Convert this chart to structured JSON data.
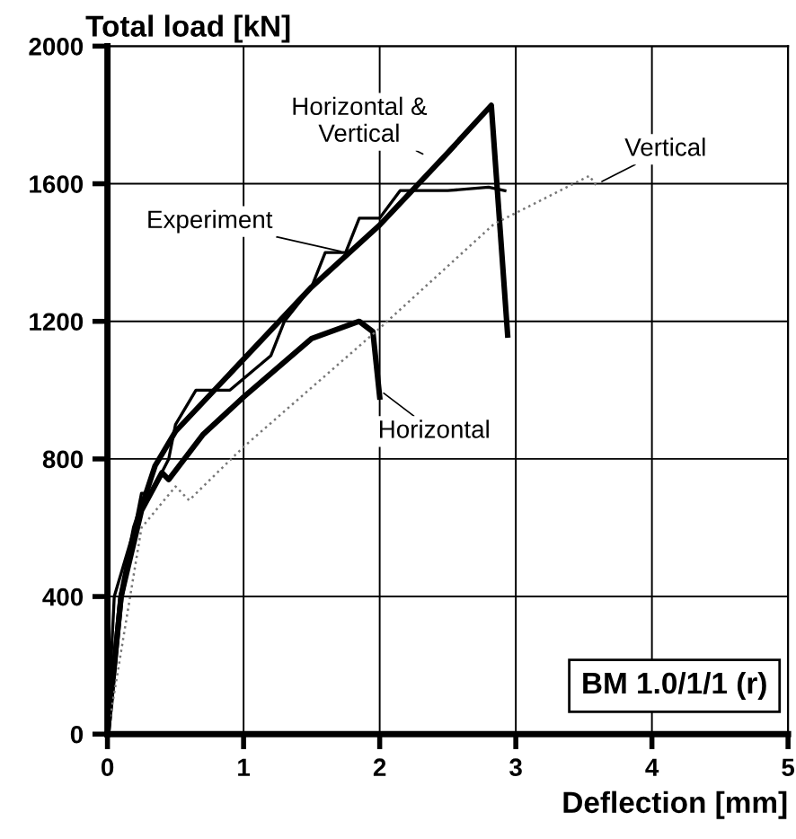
{
  "chart_data": {
    "type": "line",
    "xlabel": "Deflection [mm]",
    "ylabel": "Total load [kN]",
    "xlim": [
      0,
      5
    ],
    "ylim": [
      0,
      2000
    ],
    "xticks": [
      0,
      1,
      2,
      3,
      4,
      5
    ],
    "yticks": [
      0,
      400,
      800,
      1200,
      1600,
      2000
    ],
    "grid": true,
    "marker": "none",
    "annotations": [
      "BM 1.0/1/1 (r)"
    ],
    "series": [
      {
        "name": "Experiment",
        "color": "#000000",
        "line_style": "solid",
        "x": [
          0,
          0.05,
          0.2,
          0.25,
          0.32,
          0.45,
          0.5,
          0.65,
          0.9,
          1.2,
          1.3,
          1.5,
          1.6,
          1.75,
          1.85,
          2.0,
          2.15,
          2.5,
          2.8,
          2.92
        ],
        "values": [
          0,
          400,
          600,
          700,
          700,
          800,
          900,
          1000,
          1000,
          1100,
          1200,
          1300,
          1400,
          1400,
          1500,
          1500,
          1580,
          1580,
          1590,
          1580
        ]
      },
      {
        "name": "Horizontal & Vertical",
        "color": "#000000",
        "line_style": "solid",
        "x": [
          0,
          0.1,
          0.2,
          0.35,
          0.5,
          1.0,
          1.5,
          2.0,
          2.5,
          2.82,
          2.94
        ],
        "values": [
          0,
          400,
          600,
          780,
          880,
          1090,
          1300,
          1480,
          1690,
          1828,
          1160
        ]
      },
      {
        "name": "Horizontal",
        "color": "#000000",
        "line_style": "solid",
        "x": [
          0,
          0.1,
          0.25,
          0.4,
          0.45,
          0.7,
          1.0,
          1.5,
          1.85,
          1.95,
          2.0
        ],
        "values": [
          0,
          400,
          650,
          760,
          740,
          870,
          980,
          1150,
          1200,
          1170,
          980
        ]
      },
      {
        "name": "Vertical",
        "color": "#777777",
        "line_style": "dotted",
        "x": [
          0,
          0.25,
          0.5,
          0.6,
          1.0,
          2.0,
          2.84,
          3.54,
          3.6
        ],
        "values": [
          0,
          600,
          720,
          680,
          835,
          1180,
          1483,
          1623,
          1590
        ]
      }
    ]
  }
}
